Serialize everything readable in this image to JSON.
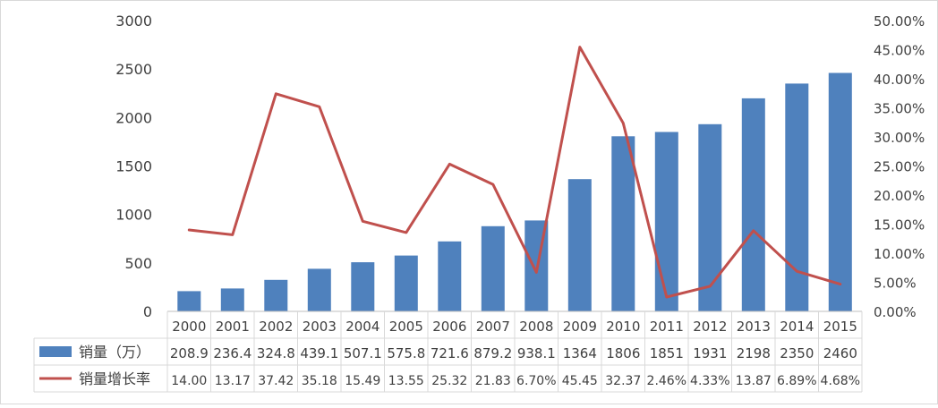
{
  "chart_data": {
    "type": "bar",
    "title": "",
    "categories": [
      "2000",
      "2001",
      "2002",
      "2003",
      "2004",
      "2005",
      "2006",
      "2007",
      "2008",
      "2009",
      "2010",
      "2011",
      "2012",
      "2013",
      "2014",
      "2015"
    ],
    "series": [
      {
        "name": "销量（万）",
        "type": "bar",
        "axis": "left",
        "color": "#4f81bd",
        "values": [
          208.9,
          236.4,
          324.8,
          439.1,
          507.1,
          575.8,
          721.6,
          879.2,
          938.1,
          1364,
          1806,
          1851,
          1931,
          2198,
          2350,
          2460
        ],
        "table_labels": [
          "208.9",
          "236.4",
          "324.8",
          "439.1",
          "507.1",
          "575.8",
          "721.6",
          "879.2",
          "938.1",
          "1364",
          "1806",
          "1851",
          "1931",
          "2198",
          "2350",
          "2460"
        ]
      },
      {
        "name": "销量增长率",
        "type": "line",
        "axis": "right",
        "color": "#c0504d",
        "values": [
          14.0,
          13.17,
          37.42,
          35.18,
          15.49,
          13.55,
          25.32,
          21.83,
          6.7,
          45.45,
          32.37,
          2.46,
          4.33,
          13.87,
          6.89,
          4.68
        ],
        "table_labels": [
          "14.00",
          "13.17",
          "37.42",
          "35.18",
          "15.49",
          "13.55",
          "25.32",
          "21.83",
          "6.70%",
          "45.45",
          "32.37",
          "2.46%",
          "4.33%",
          "13.87",
          "6.89%",
          "4.68%"
        ]
      }
    ],
    "y_left": {
      "range": [
        0,
        3000
      ],
      "ticks": [
        "0",
        "500",
        "1000",
        "1500",
        "2000",
        "2500",
        "3000"
      ]
    },
    "y_right": {
      "range": [
        0,
        50
      ],
      "unit": "percent",
      "ticks": [
        "0.00%",
        "5.00%",
        "10.00%",
        "15.00%",
        "20.00%",
        "25.00%",
        "30.00%",
        "35.00%",
        "40.00%",
        "45.00%",
        "50.00%"
      ]
    },
    "legend_placement": "data-table-left",
    "grid": false
  }
}
